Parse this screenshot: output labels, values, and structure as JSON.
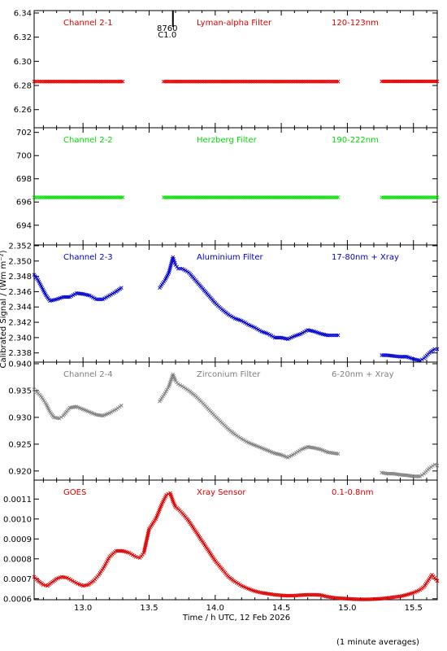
{
  "footer": "(1 minute averages)",
  "chart_data": {
    "type": "scatter",
    "xlabel": "Time / h UTC, 12 Feb 2026",
    "ylabel": "Calibrated Signal / (Wm m⁻²)",
    "xlim": [
      12.63,
      15.68
    ],
    "xticks": [
      13.0,
      13.5,
      14.0,
      14.5,
      15.0,
      15.5
    ],
    "xtick_labels": [
      "13.0",
      "13.5",
      "14.0",
      "14.5",
      "15.0",
      "15.5"
    ],
    "event_marker": {
      "x": 13.68,
      "labels": [
        "8760",
        "C1.0"
      ]
    },
    "panels": [
      {
        "channel": "Channel 2-1",
        "filter": "Lyman-alpha Filter",
        "band": "120-123nm",
        "color": "#dd0000",
        "ylim": [
          6.245,
          6.342
        ],
        "yticks": [
          6.26,
          6.28,
          6.3,
          6.32,
          6.34
        ],
        "ytick_labels": [
          "6.26",
          "6.28",
          "6.30",
          "6.32",
          "6.34"
        ],
        "series": [
          {
            "x": [
              12.63,
              12.7,
              12.8,
              12.9,
              13.0,
              13.1,
              13.2,
              13.3
            ],
            "y": [
              6.2832,
              6.2832,
              6.2832,
              6.2832,
              6.2832,
              6.2832,
              6.2832,
              6.2832
            ]
          },
          {
            "x": [
              13.61,
              13.7,
              13.8,
              13.9,
              14.0,
              14.1,
              14.2,
              14.3,
              14.4,
              14.5,
              14.6,
              14.7,
              14.8,
              14.93
            ],
            "y": [
              6.2832,
              6.2832,
              6.2832,
              6.2832,
              6.2832,
              6.2832,
              6.2832,
              6.2832,
              6.2832,
              6.2832,
              6.2832,
              6.2832,
              6.2832,
              6.2832
            ]
          },
          {
            "x": [
              15.26,
              15.35,
              15.45,
              15.55,
              15.68
            ],
            "y": [
              6.2834,
              6.2834,
              6.2834,
              6.2834,
              6.2834
            ]
          }
        ]
      },
      {
        "channel": "Channel 2-2",
        "filter": "Herzberg Filter",
        "band": "190-222nm",
        "color": "#00dd00",
        "ylim": [
          692.3,
          702.4
        ],
        "yticks": [
          694,
          696,
          698,
          700,
          702
        ],
        "ytick_labels": [
          "694",
          "696",
          "698",
          "700",
          "702"
        ],
        "series": [
          {
            "x": [
              12.63,
              12.7,
              12.8,
              12.9,
              13.0,
              13.1,
              13.2,
              13.3
            ],
            "y": [
              696.4,
              696.4,
              696.4,
              696.4,
              696.4,
              696.4,
              696.4,
              696.4
            ]
          },
          {
            "x": [
              13.61,
              13.7,
              13.8,
              13.9,
              14.0,
              14.1,
              14.2,
              14.3,
              14.4,
              14.5,
              14.6,
              14.7,
              14.8,
              14.93
            ],
            "y": [
              696.4,
              696.4,
              696.4,
              696.4,
              696.4,
              696.4,
              696.4,
              696.4,
              696.4,
              696.4,
              696.4,
              696.4,
              696.4,
              696.4
            ]
          },
          {
            "x": [
              15.26,
              15.35,
              15.45,
              15.55,
              15.68
            ],
            "y": [
              696.4,
              696.4,
              696.4,
              696.4,
              696.4
            ]
          }
        ]
      },
      {
        "channel": "Channel 2-3",
        "filter": "Aluminium Filter",
        "band": "17-80nm + Xray",
        "color": "#0000cc",
        "ylim": [
          2.3368,
          2.3521
        ],
        "yticks": [
          2.338,
          2.34,
          2.342,
          2.344,
          2.346,
          2.348,
          2.35,
          2.352
        ],
        "ytick_labels": [
          "2.338",
          "2.340",
          "2.342",
          "2.344",
          "2.346",
          "2.348",
          "2.350",
          "2.352"
        ],
        "series": [
          {
            "x": [
              12.63,
              12.66,
              12.69,
              12.72,
              12.75,
              12.8,
              12.85,
              12.9,
              12.95,
              13.0,
              13.05,
              13.1,
              13.15,
              13.2,
              13.25,
              13.29
            ],
            "y": [
              2.3482,
              2.3475,
              2.3465,
              2.3455,
              2.3448,
              2.345,
              2.3453,
              2.3453,
              2.3458,
              2.3457,
              2.3455,
              2.345,
              2.345,
              2.3455,
              2.346,
              2.3465
            ]
          },
          {
            "x": [
              13.58,
              13.62,
              13.65,
              13.68,
              13.7,
              13.72,
              13.75,
              13.8,
              13.85,
              13.9,
              13.95,
              14.0,
              14.05,
              14.1,
              14.15,
              14.2,
              14.25,
              14.3,
              14.35,
              14.4,
              14.45,
              14.5,
              14.55,
              14.6,
              14.65,
              14.7,
              14.75,
              14.8,
              14.85,
              14.93
            ],
            "y": [
              2.3465,
              2.3475,
              2.3485,
              2.3505,
              2.3495,
              2.349,
              2.349,
              2.3485,
              2.3475,
              2.3465,
              2.3455,
              2.3445,
              2.3437,
              2.343,
              2.3425,
              2.3422,
              2.3417,
              2.3413,
              2.3408,
              2.3405,
              2.34,
              2.34,
              2.3398,
              2.3402,
              2.3405,
              2.341,
              2.3408,
              2.3405,
              2.3403,
              2.3403
            ]
          },
          {
            "x": [
              15.26,
              15.3,
              15.35,
              15.4,
              15.45,
              15.5,
              15.55,
              15.58,
              15.62,
              15.66,
              15.68
            ],
            "y": [
              2.3377,
              2.3377,
              2.3376,
              2.3375,
              2.3375,
              2.3372,
              2.337,
              2.3373,
              2.338,
              2.3385,
              2.3385
            ]
          }
        ]
      },
      {
        "channel": "Channel 2-4",
        "filter": "Zirconium Filter",
        "band": "6-20nm + Xray",
        "color": "#808080",
        "ylim": [
          0.9183,
          0.9403
        ],
        "yticks": [
          0.92,
          0.925,
          0.93,
          0.935,
          0.94
        ],
        "ytick_labels": [
          "0.920",
          "0.925",
          "0.930",
          "0.935",
          "0.940"
        ],
        "series": [
          {
            "x": [
              12.63,
              12.68,
              12.72,
              12.75,
              12.78,
              12.82,
              12.85,
              12.9,
              12.95,
              13.0,
              13.05,
              13.1,
              13.15,
              13.2,
              13.25,
              13.29
            ],
            "y": [
              0.9352,
              0.934,
              0.9325,
              0.931,
              0.93,
              0.9298,
              0.9303,
              0.9318,
              0.932,
              0.9315,
              0.931,
              0.9305,
              0.9303,
              0.9308,
              0.9315,
              0.9322
            ]
          },
          {
            "x": [
              13.58,
              13.62,
              13.65,
              13.68,
              13.7,
              13.72,
              13.75,
              13.8,
              13.85,
              13.9,
              13.95,
              14.0,
              14.05,
              14.1,
              14.15,
              14.2,
              14.25,
              14.3,
              14.35,
              14.4,
              14.45,
              14.5,
              14.55,
              14.6,
              14.65,
              14.7,
              14.75,
              14.8,
              14.85,
              14.93
            ],
            "y": [
              0.933,
              0.9345,
              0.9358,
              0.938,
              0.9368,
              0.9362,
              0.9358,
              0.935,
              0.934,
              0.9328,
              0.9315,
              0.9302,
              0.929,
              0.9278,
              0.9268,
              0.926,
              0.9253,
              0.9248,
              0.9243,
              0.9238,
              0.9233,
              0.923,
              0.9225,
              0.9232,
              0.924,
              0.9245,
              0.9243,
              0.924,
              0.9235,
              0.9232
            ]
          },
          {
            "x": [
              15.26,
              15.3,
              15.35,
              15.4,
              15.45,
              15.5,
              15.55,
              15.58,
              15.62,
              15.66,
              15.68
            ],
            "y": [
              0.9197,
              0.9195,
              0.9195,
              0.9193,
              0.9192,
              0.919,
              0.919,
              0.9195,
              0.9205,
              0.9212,
              0.921
            ]
          }
        ]
      },
      {
        "channel": "GOES",
        "filter": "Xray Sensor",
        "band": "0.1-0.8nm",
        "color": "#dd0000",
        "ylim": [
          0.000595,
          0.001195
        ],
        "yticks": [
          0.0006,
          0.0007,
          0.0008,
          0.0009,
          0.001,
          0.0011
        ],
        "ytick_labels": [
          "0.0006",
          "0.0007",
          "0.0008",
          "0.0009",
          "0.0010",
          "0.0011"
        ],
        "series": [
          {
            "x": [
              12.63,
              12.66,
              12.7,
              12.73,
              12.76,
              12.8,
              12.84,
              12.88,
              12.92,
              12.96,
              13.0,
              13.04,
              13.08,
              13.12,
              13.16,
              13.2,
              13.25,
              13.3,
              13.35,
              13.4,
              13.43,
              13.46,
              13.5,
              13.55,
              13.6,
              13.63,
              13.66,
              13.68,
              13.7,
              13.72,
              13.75,
              13.8,
              13.85,
              13.9,
              13.95,
              14.0,
              14.05,
              14.1,
              14.15,
              14.2,
              14.25,
              14.3,
              14.35,
              14.4,
              14.45,
              14.5,
              14.55,
              14.6,
              14.65,
              14.7,
              14.75,
              14.8,
              14.85,
              14.9,
              14.95,
              15.0,
              15.05,
              15.1,
              15.15,
              15.2,
              15.25,
              15.3,
              15.35,
              15.4,
              15.45,
              15.5,
              15.55,
              15.58,
              15.61,
              15.64,
              15.68
            ],
            "y": [
              0.00071,
              0.00069,
              0.00067,
              0.000665,
              0.00068,
              0.0007,
              0.00071,
              0.000705,
              0.00069,
              0.000675,
              0.000665,
              0.00067,
              0.00069,
              0.00072,
              0.00076,
              0.00081,
              0.00084,
              0.00084,
              0.00083,
              0.00081,
              0.000805,
              0.00083,
              0.00095,
              0.001,
              0.00108,
              0.00112,
              0.00113,
              0.00109,
              0.00106,
              0.00105,
              0.00103,
              0.00099,
              0.00094,
              0.00089,
              0.00084,
              0.00079,
              0.00075,
              0.00071,
              0.000685,
              0.000665,
              0.00065,
              0.000638,
              0.00063,
              0.000625,
              0.00062,
              0.000617,
              0.000615,
              0.000616,
              0.000618,
              0.00062,
              0.00062,
              0.000618,
              0.00061,
              0.000605,
              0.000602,
              0.0006,
              0.000598,
              0.000597,
              0.000597,
              0.000598,
              0.0006,
              0.000603,
              0.000608,
              0.000612,
              0.00062,
              0.00063,
              0.000645,
              0.00066,
              0.00069,
              0.00072,
              0.00069
            ]
          }
        ]
      }
    ]
  }
}
